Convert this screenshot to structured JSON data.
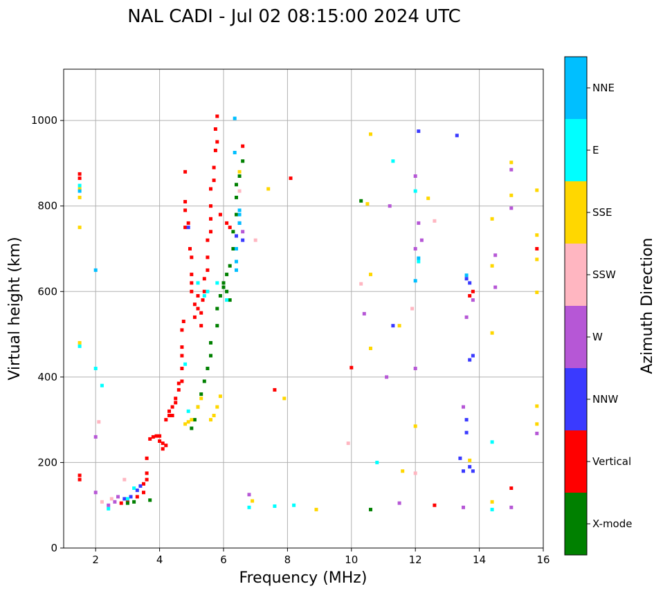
{
  "chart_data": {
    "type": "scatter",
    "title": "NAL CADI - Jul 02 08:15:00 2024 UTC",
    "xlabel": "Frequency (MHz)",
    "ylabel": "Virtual height (km)",
    "xlim": [
      1,
      16
    ],
    "ylim": [
      0,
      1120
    ],
    "xticks": [
      2,
      4,
      6,
      8,
      10,
      12,
      14,
      16
    ],
    "yticks": [
      0,
      200,
      400,
      600,
      800,
      1000
    ],
    "grid": true,
    "colorbar": {
      "title": "Azimuth Direction",
      "categories": [
        {
          "label": "X-mode",
          "color": "#008000"
        },
        {
          "label": "Vertical",
          "color": "#ff0000"
        },
        {
          "label": "NNW",
          "color": "#3a3aff"
        },
        {
          "label": "W",
          "color": "#b657d6"
        },
        {
          "label": "SSW",
          "color": "#ffb6c1"
        },
        {
          "label": "SSE",
          "color": "#ffd700"
        },
        {
          "label": "E",
          "color": "#00ffff"
        },
        {
          "label": "NNE",
          "color": "#00bfff"
        }
      ]
    },
    "series": [
      {
        "name": "Vertical",
        "points": [
          [
            1.5,
            875
          ],
          [
            1.5,
            865
          ],
          [
            1.5,
            170
          ],
          [
            1.5,
            160
          ],
          [
            2.8,
            105
          ],
          [
            3.0,
            110
          ],
          [
            3.3,
            120
          ],
          [
            3.5,
            130
          ],
          [
            3.5,
            150
          ],
          [
            3.6,
            160
          ],
          [
            3.6,
            175
          ],
          [
            3.6,
            210
          ],
          [
            3.7,
            255
          ],
          [
            3.8,
            260
          ],
          [
            3.9,
            262
          ],
          [
            4.0,
            262
          ],
          [
            4.0,
            250
          ],
          [
            4.1,
            245
          ],
          [
            4.1,
            232
          ],
          [
            4.2,
            240
          ],
          [
            4.2,
            300
          ],
          [
            4.3,
            310
          ],
          [
            4.3,
            320
          ],
          [
            4.4,
            310
          ],
          [
            4.4,
            330
          ],
          [
            4.5,
            340
          ],
          [
            4.5,
            350
          ],
          [
            4.6,
            370
          ],
          [
            4.6,
            385
          ],
          [
            4.7,
            390
          ],
          [
            4.7,
            420
          ],
          [
            4.7,
            450
          ],
          [
            4.7,
            470
          ],
          [
            4.7,
            510
          ],
          [
            4.75,
            530
          ],
          [
            4.8,
            750
          ],
          [
            4.8,
            790
          ],
          [
            4.8,
            810
          ],
          [
            4.8,
            880
          ],
          [
            4.9,
            760
          ],
          [
            4.95,
            700
          ],
          [
            5.0,
            680
          ],
          [
            5.0,
            640
          ],
          [
            5.0,
            620
          ],
          [
            5.0,
            600
          ],
          [
            5.1,
            570
          ],
          [
            5.1,
            540
          ],
          [
            5.2,
            560
          ],
          [
            5.2,
            590
          ],
          [
            5.3,
            550
          ],
          [
            5.3,
            520
          ],
          [
            5.35,
            580
          ],
          [
            5.4,
            600
          ],
          [
            5.4,
            630
          ],
          [
            5.5,
            650
          ],
          [
            5.5,
            680
          ],
          [
            5.5,
            720
          ],
          [
            5.6,
            740
          ],
          [
            5.6,
            770
          ],
          [
            5.6,
            800
          ],
          [
            5.6,
            840
          ],
          [
            5.7,
            860
          ],
          [
            5.7,
            890
          ],
          [
            5.75,
            930
          ],
          [
            5.75,
            980
          ],
          [
            5.8,
            1010
          ],
          [
            5.8,
            950
          ],
          [
            5.9,
            780
          ],
          [
            6.1,
            760
          ],
          [
            6.2,
            750
          ],
          [
            6.6,
            940
          ],
          [
            7.6,
            370
          ],
          [
            8.1,
            865
          ],
          [
            10.0,
            422
          ],
          [
            12.6,
            100
          ],
          [
            13.7,
            590
          ],
          [
            13.8,
            600
          ],
          [
            15.0,
            140
          ],
          [
            15.8,
            700
          ]
        ]
      },
      {
        "name": "X-mode",
        "points": [
          [
            3.0,
            105
          ],
          [
            3.2,
            108
          ],
          [
            3.7,
            112
          ],
          [
            5.0,
            280
          ],
          [
            5.1,
            300
          ],
          [
            5.2,
            330
          ],
          [
            5.3,
            360
          ],
          [
            5.4,
            390
          ],
          [
            5.5,
            420
          ],
          [
            5.6,
            450
          ],
          [
            5.6,
            480
          ],
          [
            5.8,
            520
          ],
          [
            5.8,
            560
          ],
          [
            5.9,
            590
          ],
          [
            6.0,
            610
          ],
          [
            6.0,
            620
          ],
          [
            6.1,
            640
          ],
          [
            6.1,
            600
          ],
          [
            6.2,
            580
          ],
          [
            6.2,
            660
          ],
          [
            6.3,
            700
          ],
          [
            6.3,
            740
          ],
          [
            6.4,
            780
          ],
          [
            6.4,
            820
          ],
          [
            6.4,
            850
          ],
          [
            6.5,
            870
          ],
          [
            6.6,
            905
          ],
          [
            10.3,
            812
          ],
          [
            10.6,
            90
          ]
        ]
      },
      {
        "name": "NNW",
        "points": [
          [
            2.9,
            115
          ],
          [
            3.1,
            120
          ],
          [
            3.3,
            135
          ],
          [
            3.4,
            145
          ],
          [
            4.9,
            750
          ],
          [
            6.4,
            730
          ],
          [
            6.5,
            760
          ],
          [
            6.6,
            720
          ],
          [
            11.3,
            520
          ],
          [
            12.1,
            975
          ],
          [
            13.3,
            965
          ],
          [
            13.4,
            210
          ],
          [
            13.5,
            180
          ],
          [
            13.6,
            630
          ],
          [
            13.7,
            190
          ],
          [
            13.7,
            440
          ],
          [
            13.7,
            620
          ],
          [
            13.8,
            180
          ],
          [
            13.8,
            450
          ],
          [
            13.6,
            300
          ],
          [
            13.6,
            270
          ]
        ]
      },
      {
        "name": "W",
        "points": [
          [
            2.0,
            130
          ],
          [
            2.0,
            260
          ],
          [
            2.4,
            100
          ],
          [
            2.6,
            108
          ],
          [
            2.7,
            120
          ],
          [
            6.6,
            740
          ],
          [
            6.8,
            125
          ],
          [
            10.4,
            548
          ],
          [
            11.1,
            400
          ],
          [
            11.2,
            800
          ],
          [
            11.5,
            105
          ],
          [
            12.0,
            420
          ],
          [
            12.0,
            700
          ],
          [
            12.0,
            870
          ],
          [
            12.1,
            760
          ],
          [
            12.2,
            720
          ],
          [
            13.5,
            330
          ],
          [
            13.5,
            95
          ],
          [
            13.6,
            540
          ],
          [
            14.5,
            685
          ],
          [
            14.5,
            610
          ],
          [
            15.0,
            885
          ],
          [
            15.0,
            795
          ],
          [
            15.0,
            95
          ],
          [
            15.8,
            268
          ],
          [
            13.8,
            580
          ]
        ]
      },
      {
        "name": "SSW",
        "points": [
          [
            2.1,
            295
          ],
          [
            2.2,
            108
          ],
          [
            2.5,
            115
          ],
          [
            6.5,
            835
          ],
          [
            7.0,
            720
          ],
          [
            9.9,
            245
          ],
          [
            10.3,
            618
          ],
          [
            11.9,
            560
          ],
          [
            12.0,
            175
          ],
          [
            12.6,
            765
          ],
          [
            2.9,
            160
          ]
        ]
      },
      {
        "name": "SSE",
        "points": [
          [
            1.5,
            840
          ],
          [
            1.5,
            820
          ],
          [
            1.5,
            750
          ],
          [
            1.5,
            480
          ],
          [
            4.8,
            290
          ],
          [
            4.9,
            295
          ],
          [
            5.0,
            300
          ],
          [
            5.2,
            330
          ],
          [
            5.3,
            350
          ],
          [
            5.6,
            300
          ],
          [
            5.7,
            310
          ],
          [
            5.8,
            330
          ],
          [
            5.9,
            355
          ],
          [
            6.9,
            110
          ],
          [
            7.4,
            840
          ],
          [
            7.9,
            350
          ],
          [
            8.9,
            90
          ],
          [
            10.6,
            968
          ],
          [
            10.5,
            805
          ],
          [
            10.6,
            640
          ],
          [
            10.6,
            467
          ],
          [
            11.5,
            520
          ],
          [
            11.6,
            180
          ],
          [
            12.0,
            285
          ],
          [
            12.4,
            818
          ],
          [
            13.7,
            205
          ],
          [
            14.4,
            770
          ],
          [
            14.4,
            660
          ],
          [
            14.4,
            503
          ],
          [
            14.4,
            108
          ],
          [
            15.0,
            902
          ],
          [
            15.0,
            825
          ],
          [
            15.8,
            837
          ],
          [
            15.8,
            732
          ],
          [
            15.8,
            675
          ],
          [
            15.8,
            598
          ],
          [
            15.8,
            332
          ],
          [
            15.8,
            290
          ],
          [
            6.5,
            880
          ]
        ]
      },
      {
        "name": "E",
        "points": [
          [
            1.5,
            848
          ],
          [
            1.5,
            472
          ],
          [
            2.0,
            420
          ],
          [
            2.2,
            380
          ],
          [
            2.4,
            92
          ],
          [
            3.0,
            115
          ],
          [
            3.2,
            140
          ],
          [
            4.8,
            430
          ],
          [
            4.9,
            320
          ],
          [
            5.2,
            620
          ],
          [
            5.4,
            590
          ],
          [
            5.5,
            600
          ],
          [
            5.8,
            620
          ],
          [
            6.1,
            580
          ],
          [
            6.8,
            95
          ],
          [
            7.6,
            98
          ],
          [
            8.2,
            100
          ],
          [
            10.8,
            200
          ],
          [
            11.3,
            905
          ],
          [
            12.0,
            835
          ],
          [
            12.1,
            670
          ],
          [
            14.4,
            248
          ],
          [
            14.4,
            90
          ]
        ]
      },
      {
        "name": "NNE",
        "points": [
          [
            1.5,
            835
          ],
          [
            2.0,
            650
          ],
          [
            6.35,
            1005
          ],
          [
            6.35,
            925
          ],
          [
            6.4,
            700
          ],
          [
            6.4,
            670
          ],
          [
            6.4,
            650
          ],
          [
            6.5,
            790
          ],
          [
            6.5,
            780
          ],
          [
            6.5,
            760
          ],
          [
            12.0,
            625
          ],
          [
            12.1,
            678
          ],
          [
            13.6,
            638
          ]
        ]
      }
    ]
  }
}
